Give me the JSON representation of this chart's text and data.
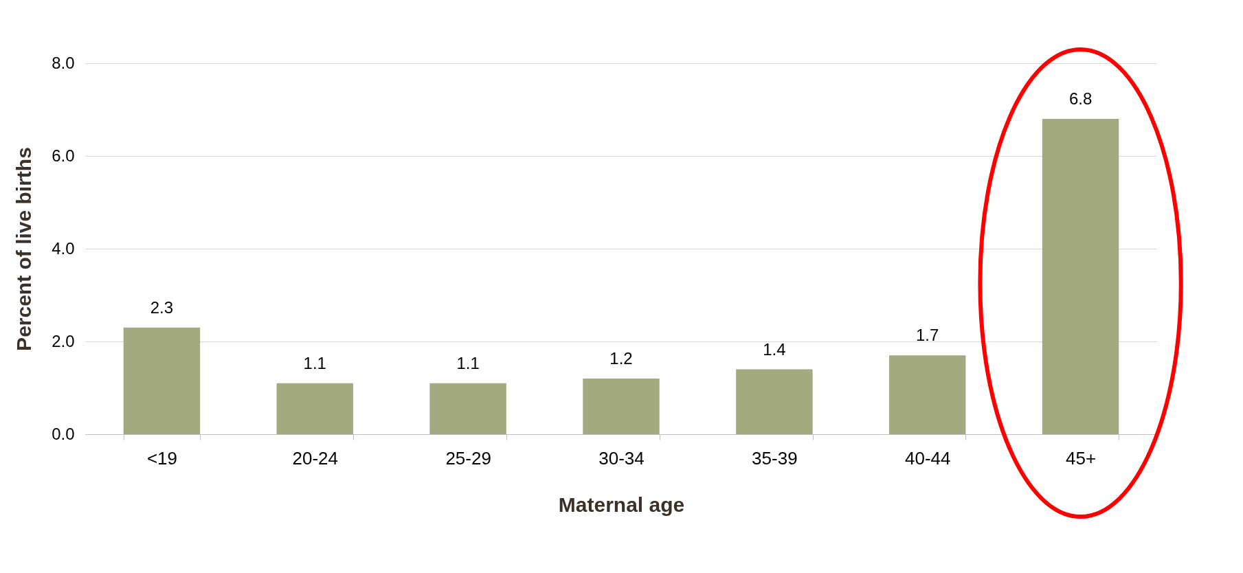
{
  "chart_data": {
    "type": "bar",
    "xlabel": "Maternal age",
    "ylabel": "Percent of live births",
    "categories": [
      "<19",
      "20-24",
      "25-29",
      "30-34",
      "35-39",
      "40-44",
      "45+"
    ],
    "values": [
      2.3,
      1.1,
      1.1,
      1.2,
      1.4,
      1.7,
      6.8
    ],
    "color": "#a3aa80",
    "ylim": [
      0,
      8
    ],
    "yticks": [
      {
        "value": 0,
        "label": "0.0"
      },
      {
        "value": 2,
        "label": "2.0"
      },
      {
        "value": 4,
        "label": "4.0"
      },
      {
        "value": 6,
        "label": "6.0"
      },
      {
        "value": 8,
        "label": "8.0"
      }
    ],
    "grid": "y",
    "data_labels": true
  }
}
